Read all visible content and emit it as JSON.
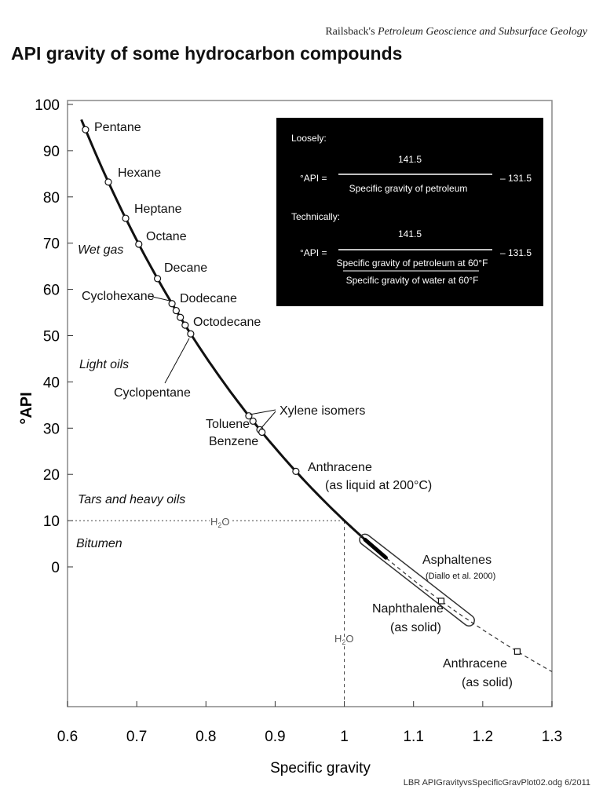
{
  "header": {
    "credit_author": "Railsback's",
    "credit_title": "Petroleum Geoscience and Subsurface Geology"
  },
  "footer": {
    "file_note": "LBR APIGravityvsSpecificGravPlot02.odg  6/2011"
  },
  "formula_box": {
    "loosely_label": "Loosely:",
    "technically_label": "Technically:",
    "lhs": "°API =",
    "numerator": "141.5",
    "loose_denominator": "Specific gravity of petroleum",
    "tech_denominator_top": "Specific gravity of petroleum at 60°F",
    "tech_denominator_bottom": "Specific gravity of water at 60°F",
    "subtract": "– 131.5",
    "colors": {
      "background": "#000000",
      "text": "#ffffff"
    }
  },
  "chart_data": {
    "type": "line",
    "title": "API gravity of some hydrocarbon compounds",
    "xlabel": "Specific gravity",
    "ylabel": "°API",
    "xlim": [
      0.6,
      1.3
    ],
    "ylim": [
      -30,
      100
    ],
    "x_ticks": [
      "0.6",
      "0.7",
      "0.8",
      "0.9",
      "1",
      "1.1",
      "1.2",
      "1.3"
    ],
    "y_ticks": [
      "100",
      "90",
      "80",
      "70",
      "60",
      "50",
      "40",
      "30",
      "20",
      "10",
      "0"
    ],
    "grid": false,
    "curve": {
      "formula": "°API = 141.5 / SG − 131.5",
      "solid_range": [
        0.62,
        1.03
      ],
      "dashed_range": [
        1.03,
        1.3
      ]
    },
    "regions": [
      "Wet gas",
      "Light oils",
      "Tars and heavy oils",
      "Bitumen"
    ],
    "water_reference": {
      "label": "H2O",
      "sg": 1.0,
      "api": 10
    },
    "liquid_points": [
      {
        "name": "Pentane",
        "sg": 0.626
      },
      {
        "name": "Hexane",
        "sg": 0.659
      },
      {
        "name": "Heptane",
        "sg": 0.684
      },
      {
        "name": "Octane",
        "sg": 0.703
      },
      {
        "name": "Decane",
        "sg": 0.73
      },
      {
        "name": "Cyclohexane",
        "sg": 0.751
      },
      {
        "name": "Dodecane",
        "sg": 0.757
      },
      {
        "name": "",
        "sg": 0.763
      },
      {
        "name": "Octodecane",
        "sg": 0.77
      },
      {
        "name": "Cyclopentane",
        "sg": 0.778
      },
      {
        "name": "Xylene isomers",
        "sg": 0.862
      },
      {
        "name": "Toluene",
        "sg": 0.868
      },
      {
        "name": "Benzene",
        "sg": 0.878
      },
      {
        "name": "Xylene isomers",
        "sg": 0.881
      },
      {
        "name": "Anthracene",
        "sg": 0.93
      }
    ],
    "solid_points": [
      {
        "name": "Naphthalene",
        "sg": 1.14
      },
      {
        "name": "Anthracene",
        "sg": 1.25
      }
    ],
    "asphaltenes": {
      "name": "Asphaltenes",
      "source": "(Diallo et al. 2000)",
      "sg_range": [
        1.03,
        1.18
      ]
    },
    "labels": {
      "pentane": "Pentane",
      "hexane": "Hexane",
      "heptane": "Heptane",
      "octane": "Octane",
      "decane": "Decane",
      "cyclohexane": "Cyclohexane",
      "dodecane": "Dodecane",
      "octodecane": "Octodecane",
      "cyclopentane": "Cyclopentane",
      "xylene": "Xylene isomers",
      "toluene": "Toluene",
      "benzene": "Benzene",
      "anthracene_liq": "Anthracene",
      "anthracene_liq_note": "(as liquid at 200°C)",
      "asphaltenes": "Asphaltenes",
      "asphaltenes_src": "(Diallo et al. 2000)",
      "naphthalene": "Naphthalene",
      "naphthalene_note": "(as solid)",
      "anthracene_sol": "Anthracene",
      "anthracene_sol_note": "(as solid)",
      "wet_gas": "Wet gas",
      "light_oils": "Light oils",
      "tars": "Tars and heavy oils",
      "bitumen": "Bitumen",
      "h2o_main": "H",
      "h2o_sub": "2",
      "h2o_end": "O"
    }
  }
}
